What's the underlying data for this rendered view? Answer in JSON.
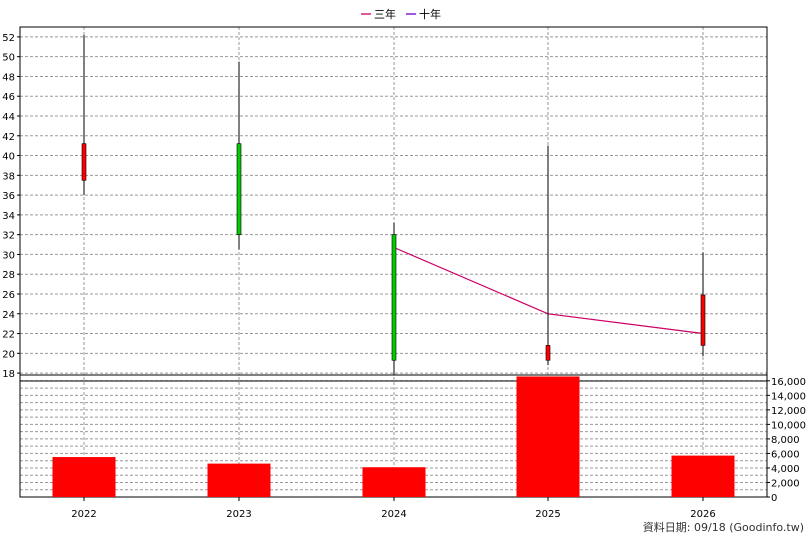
{
  "chart_data": {
    "type": "candlestick_with_volume",
    "legend": [
      {
        "label": "三年",
        "color": "#cc0066"
      },
      {
        "label": "十年",
        "color": "#6600cc"
      }
    ],
    "categories": [
      "2022",
      "2023",
      "2024",
      "2025",
      "2026"
    ],
    "price_axis": {
      "ylim": [
        17.2,
        53
      ],
      "ticks": [
        "18",
        "20",
        "22",
        "24",
        "26",
        "28",
        "30",
        "32",
        "34",
        "36",
        "38",
        "40",
        "42",
        "44",
        "46",
        "48",
        "50",
        "52"
      ]
    },
    "volume_axis": {
      "ylim": [
        0,
        16800
      ],
      "ticks": [
        "0",
        "2,000",
        "4,000",
        "6,000",
        "8,000",
        "10,000",
        "12,000",
        "14,000",
        "16,000"
      ]
    },
    "candles": [
      {
        "year": "2022",
        "open": 37.5,
        "high": 52.2,
        "low": 36.0,
        "close": 41.2
      },
      {
        "year": "2023",
        "open": 41.2,
        "high": 49.5,
        "low": 30.5,
        "close": 32.0
      },
      {
        "year": "2024",
        "open": 32.0,
        "high": 33.2,
        "low": 17.8,
        "close": 19.3
      },
      {
        "year": "2025",
        "open": 19.3,
        "high": 41.0,
        "low": 18.8,
        "close": 20.8
      },
      {
        "year": "2026",
        "open": 20.8,
        "high": 30.2,
        "low": 19.7,
        "close": 25.9
      }
    ],
    "three_year_line": [
      {
        "year": "2024",
        "value": 30.7
      },
      {
        "year": "2025",
        "value": 24.0
      },
      {
        "year": "2026",
        "value": 22.0
      }
    ],
    "volume": [
      {
        "year": "2022",
        "value": 5500
      },
      {
        "year": "2023",
        "value": 4600
      },
      {
        "year": "2024",
        "value": 4100
      },
      {
        "year": "2025",
        "value": 16600
      },
      {
        "year": "2026",
        "value": 5700
      }
    ],
    "colors": {
      "up": "#ff0000",
      "down": "#00cc00",
      "volume": "#ff0000",
      "grid": "#999999",
      "three_year_line": "#cc0066"
    },
    "grid": true
  },
  "footer": "資料日期: 09/18  (Goodinfo.tw)"
}
